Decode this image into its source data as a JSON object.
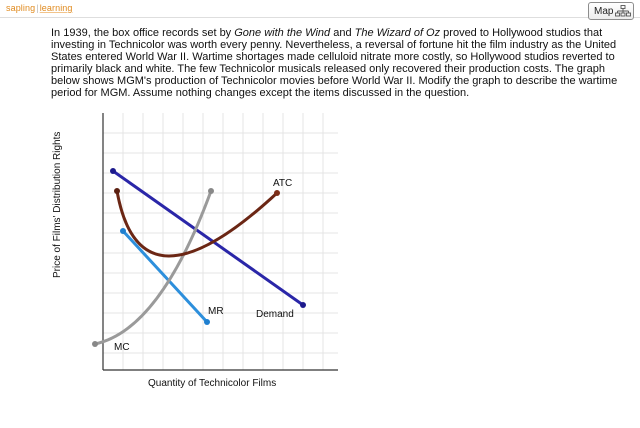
{
  "header": {
    "logo_part1": "sapling",
    "logo_part2": "learning",
    "map_label": "Map"
  },
  "question": {
    "seg1": "In 1939, the box office records set by ",
    "title1": "Gone with the Wind",
    "seg2": " and ",
    "title2": "The Wizard of Oz",
    "seg3": " proved to Hollywood studios that investing in Technicolor was worth every penny. Nevertheless, a reversal of fortune hit the film industry as the United States entered World War II. Wartime shortages made celluloid nitrate more costly, so Hollywood studios reverted to primarily black and white. The few Technicolor musicals released only recovered their production costs. The graph below shows MGM's production of Technicolor movies before World War II. Modify the graph to describe the wartime period for MGM. Assume nothing changes except the items discussed in the question."
  },
  "graph": {
    "y_axis_label": "Price of Films' Distribution Rights",
    "x_axis_label": "Quantity of Technicolor Films",
    "curves": [
      {
        "name": "ATC",
        "label": "ATC",
        "color": "#6b2614"
      },
      {
        "name": "Demand",
        "label": "Demand",
        "color": "#2a26a8"
      },
      {
        "name": "MR",
        "label": "MR",
        "color": "#2d8fdc"
      },
      {
        "name": "MC",
        "label": "MC",
        "color": "#9a9a9a"
      }
    ]
  }
}
